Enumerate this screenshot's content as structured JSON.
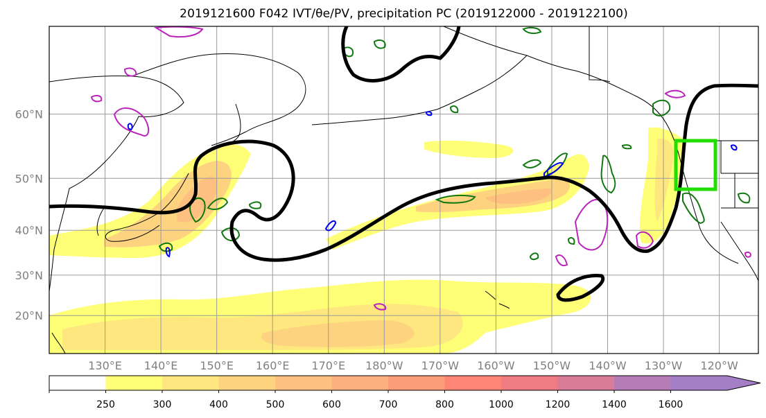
{
  "title": "2019121600 F042 IVT/θe/PV, precipitation PC (2019122000 - 2019122100)",
  "map": {
    "lat_labels": [
      {
        "value": 60,
        "label": "60°N"
      },
      {
        "value": 50,
        "label": "50°N"
      },
      {
        "value": 40,
        "label": "40°N"
      },
      {
        "value": 30,
        "label": "30°N"
      },
      {
        "value": 20,
        "label": "20°N"
      }
    ],
    "lon_labels": [
      {
        "value": 130,
        "label": "130°E"
      },
      {
        "value": 140,
        "label": "140°E"
      },
      {
        "value": 150,
        "label": "150°E"
      },
      {
        "value": 160,
        "label": "160°E"
      },
      {
        "value": 170,
        "label": "170°E"
      },
      {
        "value": 180,
        "label": "180°W"
      },
      {
        "value": 190,
        "label": "170°W"
      },
      {
        "value": 200,
        "label": "160°W"
      },
      {
        "value": 210,
        "label": "150°W"
      },
      {
        "value": 220,
        "label": "140°W"
      },
      {
        "value": 230,
        "label": "130°W"
      },
      {
        "value": 240,
        "label": "120°W"
      }
    ],
    "lon_range": [
      120,
      247
    ],
    "lat_range": [
      10,
      70
    ],
    "grid": true,
    "target_box_color": "#22dd00",
    "theta_contour_color": "#000000",
    "green_contour_color": "#117711",
    "magenta_contour_color": "#bb22bb",
    "blue_contour_color": "#0000ee"
  },
  "colorbar": {
    "ticks": [
      "250",
      "300",
      "400",
      "500",
      "600",
      "700",
      "800",
      "1000",
      "1200",
      "1400",
      "1600"
    ],
    "colors": [
      "#ffffff",
      "#ffff77",
      "#fde77e",
      "#fdd380",
      "#fdc080",
      "#fdb07e",
      "#fd9c78",
      "#fd8676",
      "#ef7c82",
      "#d97c9a",
      "#b67cb8",
      "#a47ec6"
    ],
    "extend": "max"
  }
}
